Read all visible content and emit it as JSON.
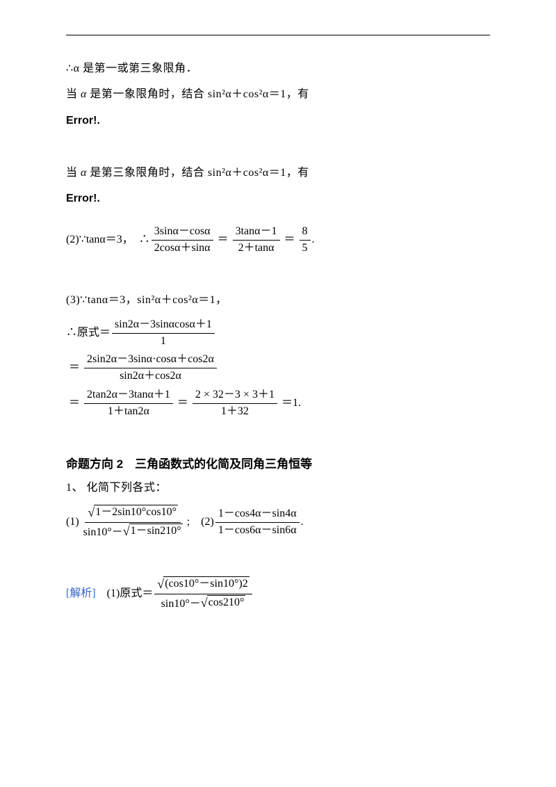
{
  "line1": "∴α 是第一或第三象限角．",
  "line2_pre": "当 ",
  "line2_mid": "α",
  "line2_post": " 是第一象限角时，结合 sin²α＋cos²α＝1，有",
  "error": "Error!.",
  "line3_pre": "当 ",
  "line3_mid": "α",
  "line3_post": " 是第三象限角时，结合 sin²α＋cos²α＝1，有",
  "eq2": {
    "prefix": "(2)∵tanα＝3，　∴",
    "f1_num": "3sinα－cosα",
    "f1_den": "2cosα＋sinα",
    "mid1": "＝",
    "f2_num": "3tanα－1",
    "f2_den": "2＋tanα",
    "mid2": "＝",
    "f3_num": "8",
    "f3_den": "5",
    "suffix": "."
  },
  "eq3": {
    "line1": "(3)∵tanα＝3，sin²α＋cos²α＝1，",
    "line2_pre": "∴原式＝",
    "l2_num": "sin2α－3sinαcosα＋1",
    "l2_den": "1",
    "line3_pre": "＝",
    "l3_num": "2sin2α－3sinα·cosα＋cos2α",
    "l3_den": "sin2α＋cos2α",
    "line4_pre": "＝",
    "l4a_num": "2tan2α－3tanα＋1",
    "l4a_den": "1＋tan2α",
    "l4_mid": "＝",
    "l4b_num": "2 × 32－3 × 3＋1",
    "l4b_den": "1＋32",
    "l4_suffix": "＝1."
  },
  "dir2": {
    "label": "命题方向 2",
    "title": "　三角函数式的化简及同角三角恒等",
    "sub": "1、 化简下列各式：",
    "p1_pre": "(1)",
    "p1_num_sqrt": "1－2sin10°cos10°",
    "p1_den_a": "sin10°－",
    "p1_den_sqrt": "1－sin210°",
    "sep": ";　(2)",
    "p2_num": "1－cos4α－sin4α",
    "p2_den": "1－cos6α－sin6α",
    "p2_suf": "."
  },
  "sol": {
    "label": "[解析]",
    "pre": "　(1)原式＝",
    "num_sqrt": "(cos10°－sin10°)2",
    "den_a": "sin10°－",
    "den_sqrt": "cos210°"
  }
}
